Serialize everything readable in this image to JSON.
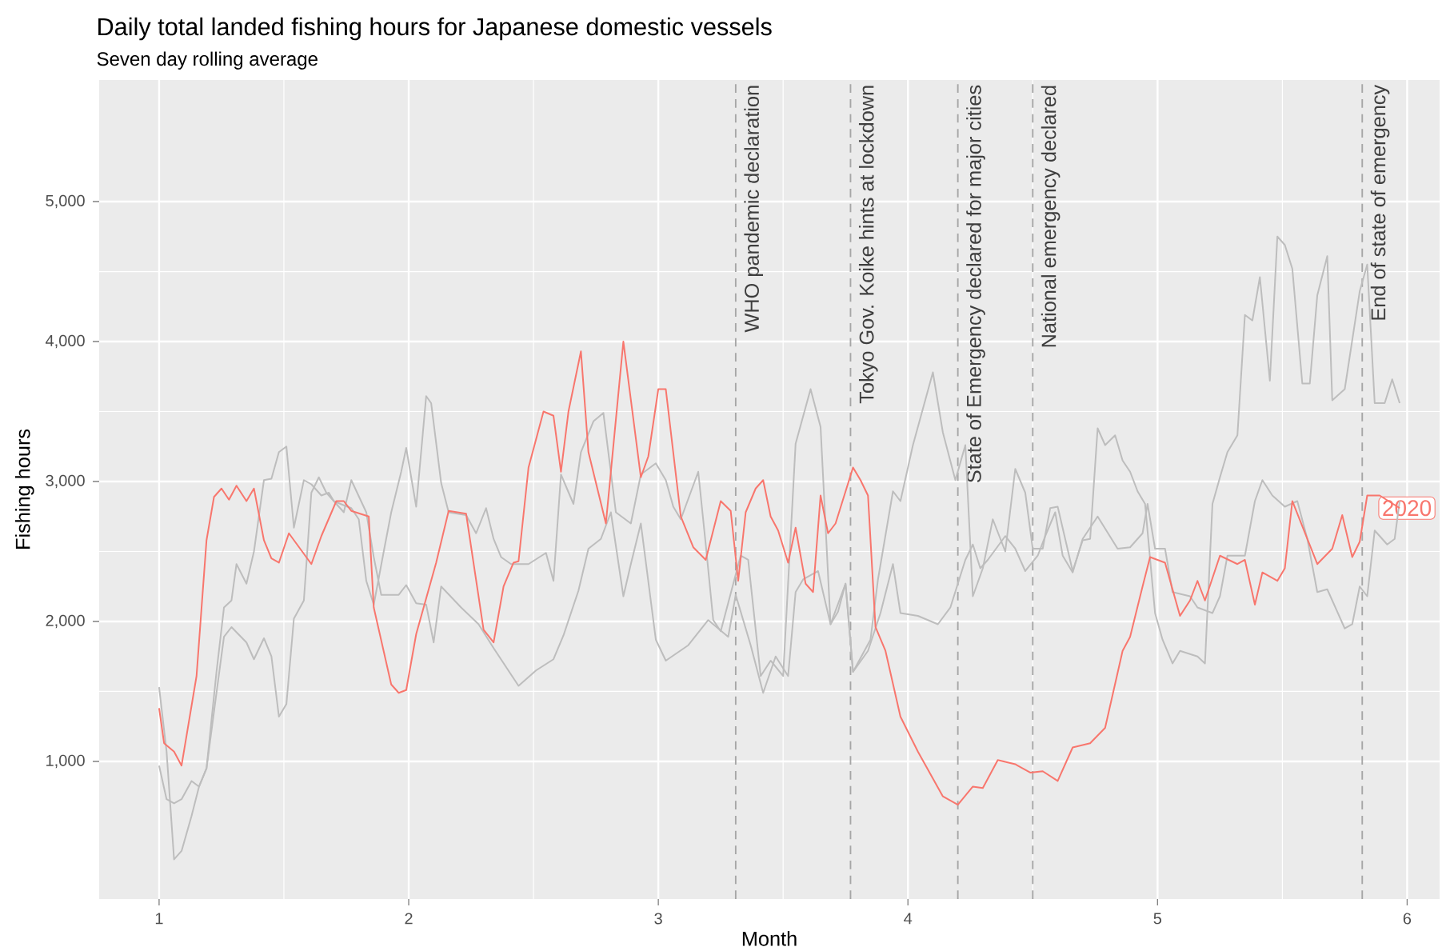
{
  "chart_data": {
    "type": "line",
    "title": "Daily total landed fishing hours for Japanese domestic vessels",
    "subtitle": "Seven day rolling average",
    "xlabel": "Month",
    "ylabel": "Fishing hours",
    "xlim": [
      0.76,
      6.13
    ],
    "ylim": [
      17,
      5869
    ],
    "xticks": [
      1,
      2,
      3,
      4,
      5,
      6
    ],
    "yticks": [
      {
        "value": 1000,
        "label": "1,000"
      },
      {
        "value": 2000,
        "label": "2,000"
      },
      {
        "value": 3000,
        "label": "3,000"
      },
      {
        "value": 4000,
        "label": "4,000"
      },
      {
        "value": 5000,
        "label": "5,000"
      }
    ],
    "grid": true,
    "series": [
      {
        "color": "#bdbdbd",
        "x": [
          1.0,
          1.03,
          1.06,
          1.09,
          1.13,
          1.16,
          1.19,
          1.23,
          1.26,
          1.29,
          1.35,
          1.38,
          1.42,
          1.45,
          1.48,
          1.51,
          1.54,
          1.58,
          1.61,
          1.64,
          1.67,
          1.7,
          1.74,
          1.77,
          1.83,
          1.86,
          1.89,
          1.96,
          1.99,
          2.03,
          2.07,
          2.1,
          2.13,
          2.21,
          2.28,
          2.34,
          2.44,
          2.51,
          2.58,
          2.62,
          2.68,
          2.72,
          2.77,
          2.81,
          2.86,
          2.89,
          2.93,
          2.99,
          3.03,
          3.12,
          3.2,
          3.28,
          3.31,
          3.37,
          3.42,
          3.47,
          3.52,
          3.55,
          3.58,
          3.64,
          3.69,
          3.75,
          3.78,
          3.84,
          3.89,
          3.94,
          3.97,
          4.04,
          4.12,
          4.17,
          4.23,
          4.26,
          4.29,
          4.32,
          4.39,
          4.43,
          4.47,
          4.52,
          4.55,
          4.59,
          4.62,
          4.66,
          4.7,
          4.76,
          4.84,
          4.89,
          4.94,
          4.96,
          4.99,
          5.03,
          5.06,
          5.13,
          5.16,
          5.22,
          5.25,
          5.28,
          5.35,
          5.39,
          5.42,
          5.46,
          5.51,
          5.56,
          5.6,
          5.64,
          5.68,
          5.75,
          5.78,
          5.81,
          5.84,
          5.87,
          5.92,
          5.95,
          5.97
        ],
        "values": [
          1530,
          1070,
          300,
          360,
          610,
          820,
          950,
          1490,
          1890,
          1960,
          1850,
          1730,
          1880,
          1750,
          1320,
          1410,
          2020,
          2150,
          2920,
          3030,
          2920,
          2860,
          2780,
          3010,
          2780,
          2460,
          2190,
          2190,
          2260,
          2130,
          2120,
          1850,
          2250,
          2100,
          1980,
          1810,
          1540,
          1650,
          1730,
          1900,
          2220,
          2520,
          2590,
          2780,
          2180,
          2410,
          2700,
          1870,
          1720,
          1830,
          2010,
          1890,
          2190,
          1830,
          1490,
          1750,
          1610,
          2210,
          2300,
          2360,
          1980,
          2270,
          1640,
          1790,
          2060,
          2410,
          2060,
          2040,
          1980,
          2100,
          2440,
          2550,
          2380,
          2440,
          2610,
          2520,
          2360,
          2470,
          2610,
          2780,
          2470,
          2350,
          2590,
          2750,
          2520,
          2530,
          2630,
          2840,
          2520,
          2520,
          2210,
          2180,
          2100,
          2060,
          2180,
          2470,
          2470,
          2860,
          3010,
          2900,
          2820,
          2860,
          2590,
          2210,
          2230,
          1950,
          1980,
          2250,
          2180,
          2650,
          2550,
          2590,
          2860
        ]
      },
      {
        "color": "#bdbdbd",
        "x": [
          1.0,
          1.03,
          1.06,
          1.09,
          1.13,
          1.16,
          1.19,
          1.23,
          1.26,
          1.29,
          1.31,
          1.35,
          1.38,
          1.42,
          1.45,
          1.48,
          1.51,
          1.54,
          1.58,
          1.61,
          1.65,
          1.68,
          1.7,
          1.74,
          1.77,
          1.8,
          1.83,
          1.86,
          1.9,
          1.93,
          1.97,
          1.99,
          2.03,
          2.07,
          2.09,
          2.13,
          2.16,
          2.23,
          2.27,
          2.31,
          2.34,
          2.37,
          2.41,
          2.48,
          2.55,
          2.58,
          2.61,
          2.66,
          2.69,
          2.74,
          2.78,
          2.83,
          2.89,
          2.93,
          2.99,
          3.03,
          3.06,
          3.09,
          3.16,
          3.19,
          3.22,
          3.25,
          3.33,
          3.36,
          3.41,
          3.45,
          3.5,
          3.55,
          3.61,
          3.65,
          3.69,
          3.72,
          3.75,
          3.78,
          3.85,
          3.88,
          3.94,
          3.97,
          4.02,
          4.1,
          4.14,
          4.19,
          4.23,
          4.26,
          4.3,
          4.34,
          4.39,
          4.43,
          4.47,
          4.5,
          4.54,
          4.57,
          4.6,
          4.66,
          4.7,
          4.73,
          4.76,
          4.79,
          4.83,
          4.86,
          4.89,
          4.92,
          4.95,
          4.99,
          5.02,
          5.06,
          5.09,
          5.16,
          5.19,
          5.22,
          5.25,
          5.28,
          5.32,
          5.35,
          5.38,
          5.41,
          5.45,
          5.48,
          5.51,
          5.54,
          5.58,
          5.61,
          5.64,
          5.68,
          5.7,
          5.75,
          5.81,
          5.84,
          5.87,
          5.91,
          5.94,
          5.97
        ],
        "values": [
          970,
          730,
          700,
          730,
          860,
          820,
          950,
          1640,
          2100,
          2150,
          2410,
          2270,
          2500,
          3010,
          3020,
          3210,
          3250,
          2670,
          3010,
          2980,
          2900,
          2920,
          2860,
          2830,
          2810,
          2730,
          2290,
          2120,
          2500,
          2780,
          3070,
          3240,
          2820,
          3610,
          3560,
          2990,
          2780,
          2760,
          2630,
          2810,
          2590,
          2460,
          2410,
          2410,
          2490,
          2290,
          3050,
          2840,
          3210,
          3430,
          3490,
          2780,
          2700,
          3050,
          3130,
          3010,
          2820,
          2730,
          3070,
          2550,
          2010,
          1930,
          2470,
          2440,
          1610,
          1720,
          1610,
          3270,
          3660,
          3390,
          1980,
          2070,
          2270,
          1640,
          1870,
          2300,
          2930,
          2860,
          3260,
          3780,
          3350,
          3010,
          3260,
          2180,
          2380,
          2730,
          2500,
          3090,
          2920,
          2520,
          2520,
          2810,
          2820,
          2360,
          2580,
          2590,
          3380,
          3260,
          3330,
          3150,
          3070,
          2930,
          2840,
          2060,
          1870,
          1700,
          1790,
          1750,
          1700,
          2840,
          3030,
          3210,
          3330,
          4190,
          4150,
          4460,
          3720,
          4750,
          4690,
          4520,
          3700,
          3700,
          4330,
          4610,
          3580,
          3660,
          4360,
          4550,
          3560,
          3560,
          3730,
          3560
        ]
      },
      {
        "name": "2020",
        "color": "#f8766d",
        "x": [
          1.0,
          1.02,
          1.06,
          1.09,
          1.15,
          1.19,
          1.22,
          1.25,
          1.28,
          1.31,
          1.35,
          1.38,
          1.42,
          1.45,
          1.48,
          1.52,
          1.61,
          1.65,
          1.71,
          1.74,
          1.77,
          1.84,
          1.86,
          1.93,
          1.96,
          1.99,
          2.03,
          2.11,
          2.16,
          2.23,
          2.3,
          2.34,
          2.38,
          2.42,
          2.44,
          2.48,
          2.54,
          2.58,
          2.61,
          2.64,
          2.69,
          2.72,
          2.79,
          2.86,
          2.93,
          2.96,
          3.0,
          3.03,
          3.09,
          3.14,
          3.19,
          3.25,
          3.29,
          3.32,
          3.35,
          3.39,
          3.42,
          3.45,
          3.48,
          3.52,
          3.55,
          3.59,
          3.62,
          3.65,
          3.68,
          3.71,
          3.78,
          3.81,
          3.84,
          3.87,
          3.91,
          3.97,
          4.04,
          4.14,
          4.2,
          4.26,
          4.3,
          4.36,
          4.43,
          4.49,
          4.54,
          4.6,
          4.66,
          4.73,
          4.79,
          4.86,
          4.89,
          4.94,
          4.97,
          5.03,
          5.09,
          5.13,
          5.16,
          5.19,
          5.25,
          5.32,
          5.35,
          5.39,
          5.42,
          5.48,
          5.51,
          5.54,
          5.6,
          5.64,
          5.7,
          5.74,
          5.78,
          5.81,
          5.84,
          5.89,
          5.97
        ],
        "values": [
          1380,
          1130,
          1070,
          970,
          1610,
          2580,
          2890,
          2950,
          2870,
          2970,
          2860,
          2950,
          2580,
          2450,
          2420,
          2630,
          2410,
          2610,
          2860,
          2860,
          2790,
          2750,
          2100,
          1550,
          1490,
          1510,
          1910,
          2420,
          2790,
          2770,
          1940,
          1850,
          2250,
          2420,
          2430,
          3100,
          3500,
          3470,
          3070,
          3500,
          3930,
          3210,
          2700,
          4000,
          3030,
          3180,
          3660,
          3660,
          2750,
          2530,
          2440,
          2860,
          2790,
          2290,
          2780,
          2950,
          3010,
          2750,
          2650,
          2420,
          2670,
          2270,
          2210,
          2900,
          2630,
          2700,
          3100,
          3010,
          2900,
          1960,
          1790,
          1320,
          1070,
          750,
          690,
          820,
          810,
          1010,
          980,
          920,
          930,
          860,
          1100,
          1130,
          1240,
          1790,
          1890,
          2250,
          2460,
          2420,
          2040,
          2150,
          2290,
          2150,
          2470,
          2410,
          2440,
          2120,
          2350,
          2290,
          2380,
          2860,
          2590,
          2410,
          2520,
          2760,
          2460,
          2570,
          2900,
          2900,
          2810
        ]
      }
    ],
    "ref_lines": [
      {
        "axis": "x",
        "value": 3.31,
        "label": "WHO pandemic declaration",
        "color": "#a6a6a6",
        "line_style": "dashed"
      },
      {
        "axis": "x",
        "value": 3.77,
        "label": "Tokyo Gov. Koike hints at lockdown",
        "color": "#a6a6a6",
        "line_style": "dashed"
      },
      {
        "axis": "x",
        "value": 4.2,
        "label": "State of Emergency declared for major cities",
        "color": "#a6a6a6",
        "line_style": "dashed"
      },
      {
        "axis": "x",
        "value": 4.5,
        "label": "National emergency declared",
        "color": "#a6a6a6",
        "line_style": "dashed"
      },
      {
        "axis": "x",
        "value": 5.82,
        "label": "End of state of emergency",
        "color": "#a6a6a6",
        "line_style": "dashed"
      }
    ]
  }
}
